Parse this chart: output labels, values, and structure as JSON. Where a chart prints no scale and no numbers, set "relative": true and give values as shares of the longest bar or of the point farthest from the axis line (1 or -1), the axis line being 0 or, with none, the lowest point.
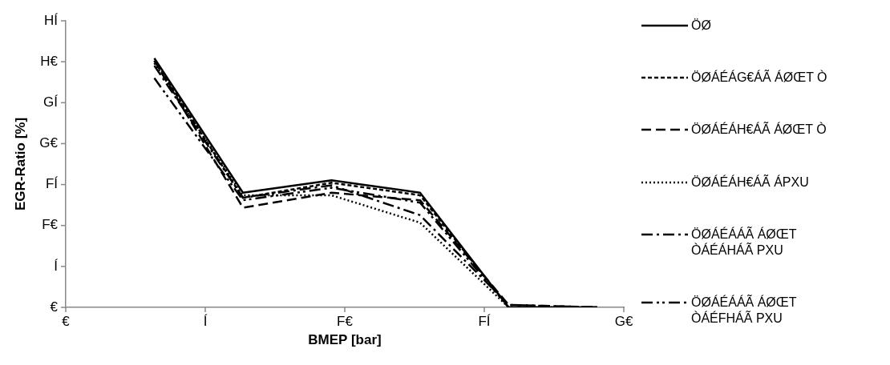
{
  "chart_data": {
    "type": "line",
    "relative": true,
    "xlabel": "BMEP [bar]",
    "ylabel": "EGR-Ratio [%]",
    "categories": [
      null,
      null,
      null,
      null,
      null,
      null
    ],
    "annotations": [
      "€",
      "Í",
      "F€",
      "FÍ",
      "G€",
      "€",
      "Í",
      "F€",
      "FÍ",
      "G€",
      "GÍ",
      "H€",
      "HÍ"
    ],
    "grid": false,
    "legend": "right",
    "marker": "none",
    "series": [
      {
        "name": "ÖØ",
        "color": "#000000",
        "line_style": "solid",
        "values": [
          1,
          0.46,
          0.51,
          0.46,
          0,
          0
        ]
      },
      {
        "name": "ÖØÁÉÁG€ÁÃ ÁØŒT Ò",
        "color": "#000000",
        "line_style": "dashed",
        "values": [
          0.99,
          0.44,
          0.5,
          0.45,
          0,
          0
        ]
      },
      {
        "name": "ÖØÁÉÁH€ÁÃ ÁØŒT Ò",
        "color": "#000000",
        "line_style": "dashed",
        "values": [
          0.99,
          0.4,
          0.46,
          0.43,
          0.01,
          0
        ]
      },
      {
        "name": "ÖØÁÉÁH€ÁÃ ÁPXU",
        "color": "#000000",
        "line_style": "dotted",
        "values": [
          0.98,
          0.45,
          0.45,
          0.34,
          0,
          0
        ]
      },
      {
        "name": "ÖØÁÉÁÁÃ ÁØŒT ÒÁÉÁHÁÃ PXU",
        "color": "#000000",
        "line_style": "dashed",
        "values": [
          0.97,
          0.44,
          0.49,
          0.37,
          0.01,
          0
        ]
      },
      {
        "name": "ÖØÁÉÁÁÃ ÁØŒT ÒÁÉFHÁÃ PXU",
        "color": "#000000",
        "line_style": "dashed",
        "values": [
          0.92,
          0.43,
          0.48,
          0.42,
          0,
          0
        ]
      }
    ]
  }
}
